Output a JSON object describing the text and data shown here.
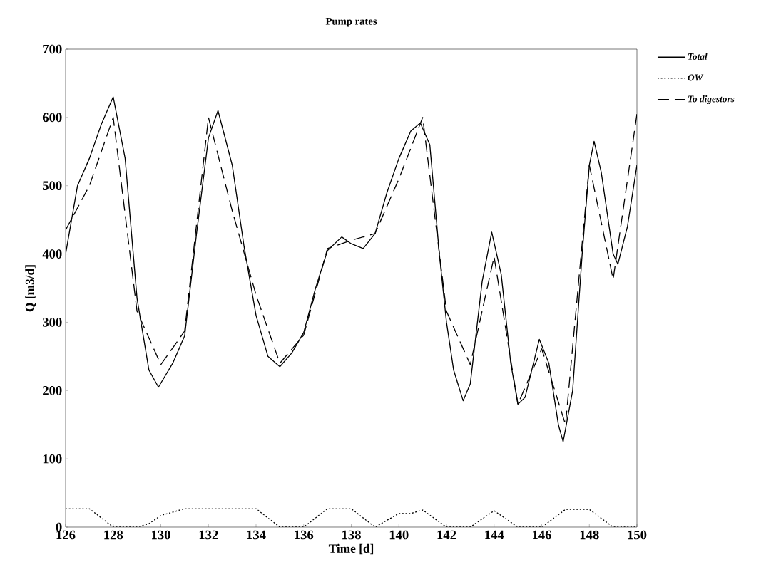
{
  "chart_data": {
    "type": "line",
    "title": "Pump rates",
    "xlabel": "Time [d]",
    "ylabel": "Q [m3/d]",
    "xlim": [
      126,
      150
    ],
    "ylim": [
      0,
      700
    ],
    "xticks": [
      126,
      128,
      130,
      132,
      134,
      136,
      138,
      140,
      142,
      144,
      146,
      148,
      150
    ],
    "yticks": [
      0,
      100,
      200,
      300,
      400,
      500,
      600,
      700
    ],
    "grid": false,
    "legend": "top right",
    "marker": "none",
    "series": [
      {
        "name": "Total",
        "color": "#000000",
        "line_style": "solid",
        "x": [
          126,
          126.5,
          127,
          127.5,
          128,
          128.5,
          129,
          129.5,
          129.9,
          130.5,
          131,
          131.5,
          132,
          132.4,
          133,
          133.5,
          134,
          134.5,
          135,
          135.5,
          136,
          136.5,
          137,
          137.6,
          138,
          138.5,
          139,
          139.5,
          140,
          140.5,
          140.9,
          141.3,
          141.7,
          142,
          142.3,
          142.7,
          143,
          143.5,
          143.9,
          144.3,
          144.7,
          145,
          145.3,
          145.9,
          146.3,
          146.7,
          146.9,
          147.3,
          147.7,
          148,
          148.2,
          148.5,
          149,
          149.2,
          149.6,
          150
        ],
        "values": [
          400,
          500,
          540,
          590,
          630,
          540,
          335,
          230,
          205,
          240,
          280,
          430,
          570,
          610,
          530,
          410,
          310,
          250,
          235,
          255,
          285,
          350,
          405,
          425,
          415,
          408,
          430,
          490,
          540,
          580,
          592,
          560,
          400,
          300,
          230,
          185,
          210,
          360,
          432,
          370,
          240,
          180,
          190,
          275,
          240,
          150,
          125,
          200,
          400,
          530,
          565,
          520,
          400,
          385,
          440,
          530
        ]
      },
      {
        "name": "OW",
        "color": "#000000",
        "line_style": "dotted",
        "x": [
          126,
          127,
          128,
          129,
          129.5,
          130,
          131,
          134,
          135,
          136,
          137,
          138,
          139,
          140,
          140.5,
          141,
          142,
          143,
          144,
          145,
          146,
          147,
          148,
          149,
          150
        ],
        "values": [
          27,
          27,
          0,
          0,
          5,
          17,
          27,
          27,
          0,
          0,
          27,
          27,
          0,
          20,
          20,
          25,
          0,
          0,
          24,
          0,
          0,
          26,
          26,
          0,
          0
        ]
      },
      {
        "name": "To digestors",
        "color": "#000000",
        "line_style": "dashed",
        "x": [
          126,
          127,
          128,
          129,
          130,
          131,
          132,
          133,
          134,
          135,
          136,
          137,
          138,
          139,
          140,
          141,
          142,
          143,
          144,
          145,
          146,
          147,
          148,
          149,
          150
        ],
        "values": [
          435,
          500,
          600,
          316,
          238,
          287,
          600,
          463,
          340,
          240,
          281,
          408,
          420,
          430,
          510,
          600,
          316,
          238,
          396,
          180,
          261,
          150,
          530,
          363,
          605
        ]
      }
    ]
  }
}
